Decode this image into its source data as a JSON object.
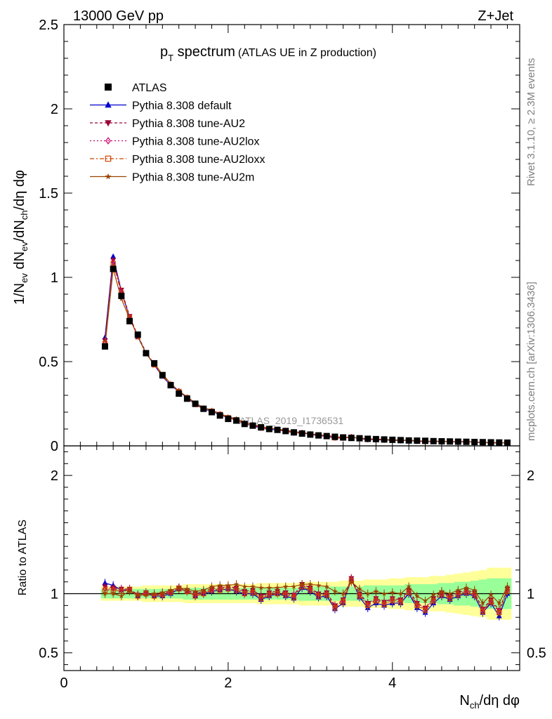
{
  "header": {
    "left": "13000 GeV pp",
    "right": "Z+Jet"
  },
  "side": {
    "rivet": "Rivet 3.1.10, ≥ 2.3M events",
    "mcplots": "mcplots.cern.ch [arXiv:1306.3436]"
  },
  "chart_data": {
    "type": "line",
    "title_main": "p",
    "title_sub": "T",
    "title_rest": " spectrum",
    "title_note": "(ATLAS UE in Z production)",
    "watermark": "ATLAS_2019_I1736531",
    "ylabel_main": "1/N",
    "ylabel_parts": [
      "ev",
      " dN",
      "ev",
      "/dN",
      "ch",
      "/dη dφ"
    ],
    "xlabel": "N",
    "xlabel_sub": "ch",
    "xlabel_rest": "/dη dφ",
    "ratio_ylabel": "Ratio to ATLAS",
    "xlim": [
      0,
      5.55
    ],
    "ylim": [
      0,
      2.5
    ],
    "ratio_ylim": [
      0.35,
      2.25
    ],
    "x_ticks": [
      "0",
      "2",
      "4"
    ],
    "y_ticks": [
      "0",
      "0.5",
      "1",
      "1.5",
      "2",
      "2.5"
    ],
    "ratio_ticks": [
      "0.5",
      "1",
      "2"
    ],
    "x": [
      0.5,
      0.6,
      0.7,
      0.8,
      0.9,
      1.0,
      1.1,
      1.2,
      1.3,
      1.4,
      1.5,
      1.6,
      1.7,
      1.8,
      1.9,
      2.0,
      2.1,
      2.2,
      2.3,
      2.4,
      2.5,
      2.6,
      2.7,
      2.8,
      2.9,
      3.0,
      3.1,
      3.2,
      3.3,
      3.4,
      3.5,
      3.6,
      3.7,
      3.8,
      3.9,
      4.0,
      4.1,
      4.2,
      4.3,
      4.4,
      4.5,
      4.6,
      4.7,
      4.8,
      4.9,
      5.0,
      5.1,
      5.2,
      5.3,
      5.4
    ],
    "series": [
      {
        "name": "ATLAS",
        "color": "#000000",
        "marker": "square",
        "values": [
          0.59,
          1.05,
          0.89,
          0.74,
          0.66,
          0.55,
          0.49,
          0.42,
          0.36,
          0.31,
          0.28,
          0.25,
          0.22,
          0.2,
          0.18,
          0.16,
          0.15,
          0.13,
          0.12,
          0.11,
          0.1,
          0.095,
          0.088,
          0.08,
          0.073,
          0.067,
          0.062,
          0.058,
          0.054,
          0.05,
          0.047,
          0.045,
          0.042,
          0.04,
          0.038,
          0.036,
          0.034,
          0.032,
          0.031,
          0.03,
          0.028,
          0.027,
          0.026,
          0.025,
          0.024,
          0.023,
          0.022,
          0.021,
          0.02,
          0.019
        ]
      },
      {
        "name": "Pythia 8.308 default",
        "color": "#0000cc",
        "marker": "triangle-up",
        "ratio": [
          1.09,
          1.07,
          1.03,
          1.03,
          0.98,
          1.0,
          0.98,
          0.98,
          1.0,
          1.04,
          1.02,
          0.98,
          1.0,
          1.02,
          1.03,
          1.04,
          1.02,
          1.0,
          1.0,
          0.95,
          0.98,
          1.0,
          0.98,
          0.96,
          1.05,
          1.02,
          0.97,
          0.98,
          0.87,
          0.92,
          1.12,
          0.97,
          0.88,
          0.92,
          0.9,
          0.92,
          0.92,
          1.0,
          0.88,
          0.84,
          0.92,
          0.98,
          0.95,
          0.98,
          1.0,
          0.98,
          0.84,
          0.92,
          0.81,
          1.0
        ]
      },
      {
        "name": "Pythia 8.308 tune-AU2",
        "color": "#990033",
        "marker": "triangle-down",
        "ratio": [
          1.06,
          1.05,
          1.04,
          1.04,
          0.99,
          1.01,
          0.99,
          1.0,
          1.02,
          1.05,
          1.03,
          1.0,
          1.02,
          1.04,
          1.05,
          1.06,
          1.05,
          1.02,
          1.03,
          0.98,
          1.01,
          1.02,
          1.01,
          0.99,
          1.08,
          1.05,
          1.0,
          1.01,
          0.9,
          0.95,
          1.13,
          1.0,
          0.92,
          0.96,
          0.93,
          0.96,
          0.95,
          1.03,
          0.92,
          0.88,
          0.96,
          1.01,
          0.98,
          1.01,
          1.03,
          1.01,
          0.87,
          0.95,
          0.86,
          1.04
        ]
      },
      {
        "name": "Pythia 8.308 tune-AU2lox",
        "color": "#cc0066",
        "marker": "diamond",
        "ratio": [
          1.04,
          1.04,
          1.03,
          1.03,
          0.99,
          1.0,
          0.99,
          0.99,
          1.01,
          1.05,
          1.02,
          0.99,
          1.01,
          1.03,
          1.04,
          1.05,
          1.04,
          1.01,
          1.02,
          0.97,
          1.0,
          1.01,
          1.0,
          0.98,
          1.07,
          1.04,
          0.99,
          1.0,
          0.89,
          0.94,
          1.12,
          0.99,
          0.91,
          0.95,
          0.92,
          0.95,
          0.94,
          1.02,
          0.91,
          0.87,
          0.95,
          1.0,
          0.97,
          1.0,
          1.02,
          1.0,
          0.86,
          0.94,
          0.85,
          1.03
        ]
      },
      {
        "name": "Pythia 8.308 tune-AU2loxx",
        "color": "#cc4400",
        "marker": "square-open",
        "ratio": [
          1.03,
          1.03,
          1.02,
          1.03,
          0.98,
          1.0,
          0.98,
          0.99,
          1.01,
          1.04,
          1.02,
          0.98,
          1.0,
          1.03,
          1.03,
          1.04,
          1.03,
          1.0,
          1.01,
          0.96,
          0.99,
          1.0,
          0.99,
          0.97,
          1.06,
          1.03,
          0.98,
          0.99,
          0.88,
          0.93,
          1.11,
          0.98,
          0.9,
          0.94,
          0.91,
          0.94,
          0.93,
          1.01,
          0.9,
          0.86,
          0.94,
          0.99,
          0.96,
          0.99,
          1.01,
          0.99,
          0.85,
          0.93,
          0.84,
          1.02
        ]
      },
      {
        "name": "Pythia 8.308 tune-AU2m",
        "color": "#994400",
        "marker": "star",
        "ratio": [
          1.0,
          1.0,
          0.98,
          1.02,
          0.99,
          0.99,
          1.0,
          1.01,
          1.03,
          1.05,
          1.04,
          1.02,
          1.03,
          1.06,
          1.07,
          1.07,
          1.08,
          1.06,
          1.06,
          1.05,
          1.05,
          1.05,
          1.06,
          1.06,
          1.08,
          1.08,
          1.07,
          1.06,
          1.02,
          1.0,
          1.1,
          1.04,
          1.0,
          1.02,
          1.0,
          1.01,
          1.0,
          1.06,
          0.98,
          0.94,
          0.99,
          1.02,
          1.0,
          1.03,
          1.05,
          1.03,
          0.92,
          0.99,
          0.92,
          1.06
        ]
      }
    ],
    "band_inner": [
      0.04,
      0.04,
      0.04,
      0.04,
      0.04,
      0.04,
      0.04,
      0.04,
      0.04,
      0.04,
      0.05,
      0.05,
      0.05,
      0.05,
      0.05,
      0.05,
      0.05,
      0.05,
      0.05,
      0.05,
      0.05,
      0.05,
      0.05,
      0.05,
      0.06,
      0.06,
      0.06,
      0.06,
      0.06,
      0.06,
      0.06,
      0.06,
      0.07,
      0.07,
      0.07,
      0.07,
      0.07,
      0.08,
      0.08,
      0.08,
      0.08,
      0.09,
      0.09,
      0.1,
      0.1,
      0.11,
      0.12,
      0.13,
      0.13,
      0.13
    ],
    "band_outer": [
      0.06,
      0.06,
      0.06,
      0.06,
      0.06,
      0.07,
      0.07,
      0.07,
      0.07,
      0.07,
      0.08,
      0.08,
      0.08,
      0.08,
      0.08,
      0.08,
      0.08,
      0.08,
      0.08,
      0.09,
      0.09,
      0.09,
      0.09,
      0.09,
      0.1,
      0.1,
      0.1,
      0.1,
      0.1,
      0.11,
      0.11,
      0.11,
      0.12,
      0.12,
      0.12,
      0.13,
      0.13,
      0.14,
      0.14,
      0.14,
      0.15,
      0.15,
      0.16,
      0.17,
      0.18,
      0.19,
      0.2,
      0.22,
      0.22,
      0.22
    ]
  }
}
